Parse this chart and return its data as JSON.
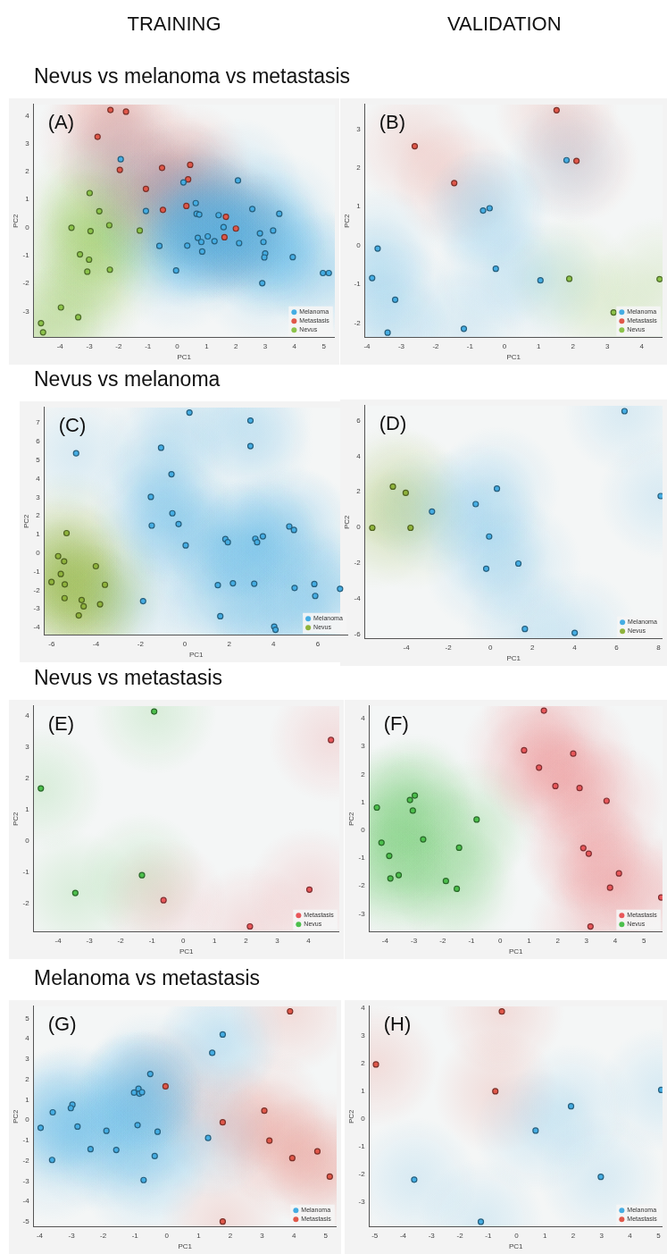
{
  "chart_data": [
    {
      "type": "scatter",
      "title": "(A)",
      "subtitle": "Nevus vs melanoma vs metastasis",
      "annotations": [
        "TRAINING"
      ],
      "xlabel": "PC1",
      "ylabel": "PC2",
      "xlim": [
        -4.9,
        5.37
      ],
      "ylim": [
        -3.94,
        4.4
      ],
      "xticks": [
        -4,
        -3,
        -2,
        -1,
        0,
        1,
        2,
        3,
        4,
        5
      ],
      "yticks": [
        -3,
        -2,
        -1,
        0,
        1,
        2,
        3,
        4
      ],
      "legend": "bottom right",
      "marker": "circle",
      "series": [
        {
          "name": "Melanoma",
          "color": "#45ade3",
          "x": [
            -1.93,
            0.21,
            2.07,
            -1.07,
            0.63,
            0.66,
            0.75,
            1.41,
            2.56,
            3.48,
            1.58,
            3.27,
            2.82,
            0.7,
            1.04,
            1.27,
            0.82,
            2.11,
            2.94,
            -0.61,
            0.34,
            0.85,
            3.0,
            2.97,
            3.94,
            -0.04,
            4.97,
            5.17,
            2.9
          ],
          "values": [
            2.44,
            1.61,
            1.68,
            0.59,
            0.87,
            0.49,
            0.46,
            0.44,
            0.66,
            0.49,
            0.01,
            -0.11,
            -0.21,
            -0.37,
            -0.32,
            -0.49,
            -0.52,
            -0.56,
            -0.52,
            -0.66,
            -0.65,
            -0.86,
            -0.93,
            -1.07,
            -1.06,
            -1.54,
            -1.63,
            -1.63,
            -1.99
          ]
        },
        {
          "name": "Metastasis",
          "color": "#e0584a",
          "x": [
            -2.28,
            -1.75,
            -2.72,
            -1.96,
            -0.52,
            0.44,
            0.37,
            -1.07,
            -0.49,
            0.31,
            1.66,
            2.0,
            1.61
          ],
          "values": [
            4.2,
            4.14,
            3.24,
            2.06,
            2.13,
            2.24,
            1.72,
            1.38,
            0.63,
            0.77,
            0.38,
            -0.04,
            -0.35
          ]
        },
        {
          "name": "Nevus",
          "color": "#8cc34a",
          "x": [
            -2.99,
            -2.66,
            -3.61,
            -2.96,
            -2.32,
            -1.28,
            -3.32,
            -3.01,
            -3.07,
            -2.3,
            -3.97,
            -3.38,
            -4.65,
            -4.58
          ],
          "values": [
            1.23,
            0.58,
            -0.01,
            -0.13,
            0.08,
            -0.11,
            -0.96,
            -1.15,
            -1.58,
            -1.51,
            -2.86,
            -3.21,
            -3.42,
            -3.75
          ]
        }
      ]
    },
    {
      "type": "scatter",
      "title": "(B)",
      "annotations": [
        "VALIDATION"
      ],
      "xlabel": "PC1",
      "ylabel": "PC2",
      "xlim": [
        -4.06,
        4.6
      ],
      "ylim": [
        -2.38,
        3.64
      ],
      "xticks": [
        -4,
        -3,
        -2,
        -1,
        0,
        1,
        2,
        3,
        4
      ],
      "yticks": [
        -2,
        -1,
        0,
        1,
        2,
        3
      ],
      "legend": "bottom right",
      "marker": "circle",
      "series": [
        {
          "name": "Melanoma",
          "color": "#45ade3",
          "x": [
            1.81,
            -0.62,
            -0.43,
            -3.69,
            -3.85,
            -0.25,
            1.05,
            -3.18,
            -3.4,
            -1.18
          ],
          "values": [
            2.2,
            0.9,
            0.96,
            -0.08,
            -0.84,
            -0.6,
            -0.9,
            -1.4,
            -2.25,
            -2.15
          ]
        },
        {
          "name": "Metastasis",
          "color": "#e0584a",
          "x": [
            1.52,
            -2.61,
            2.1,
            -1.46
          ],
          "values": [
            3.49,
            2.56,
            2.18,
            1.61
          ]
        },
        {
          "name": "Nevus",
          "color": "#8cc34a",
          "x": [
            1.89,
            4.52,
            3.18
          ],
          "values": [
            -0.86,
            -0.87,
            -1.73
          ]
        }
      ]
    },
    {
      "type": "scatter",
      "title": "(C)",
      "subtitle": "Nevus vs melanoma",
      "xlabel": "PC1",
      "ylabel": "PC2",
      "xlim": [
        -6.33,
        7.36
      ],
      "ylim": [
        -4.43,
        7.84
      ],
      "xticks": [
        -6,
        -4,
        -2,
        0,
        2,
        4,
        6
      ],
      "yticks": [
        -4,
        -3,
        -2,
        -1,
        0,
        1,
        2,
        3,
        4,
        5,
        6,
        7
      ],
      "legend": "bottom right",
      "marker": "circle",
      "series": [
        {
          "name": "Melanoma",
          "color": "#45ade3",
          "x": [
            0.21,
            2.96,
            2.96,
            -4.9,
            -1.07,
            -0.6,
            -1.53,
            -0.56,
            -1.49,
            -0.28,
            0.04,
            1.83,
            1.94,
            3.18,
            3.26,
            3.52,
            4.71,
            4.92,
            1.49,
            2.17,
            3.13,
            4.95,
            5.84,
            5.88,
            7.0,
            -1.88,
            1.6,
            4.03,
            4.09
          ],
          "values": [
            7.56,
            7.13,
            5.76,
            5.37,
            5.67,
            4.24,
            3.02,
            2.14,
            1.48,
            1.56,
            0.41,
            0.75,
            0.58,
            0.77,
            0.58,
            0.9,
            1.43,
            1.24,
            -1.73,
            -1.63,
            -1.65,
            -1.88,
            -1.67,
            -2.31,
            -1.93,
            -2.59,
            -3.4,
            -3.96,
            -4.13
          ]
        },
        {
          "name": "Nevus",
          "color": "#8fb33c",
          "x": [
            -5.33,
            -5.71,
            -5.44,
            -5.59,
            -6.01,
            -5.41,
            -4.01,
            -3.6,
            -5.42,
            -4.65,
            -4.56,
            -3.82,
            -4.78
          ],
          "values": [
            1.07,
            -0.17,
            -0.45,
            -1.13,
            -1.56,
            -1.69,
            -0.71,
            -1.71,
            -2.43,
            -2.53,
            -2.87,
            -2.76,
            -3.36
          ]
        }
      ]
    },
    {
      "type": "scatter",
      "title": "(D)",
      "xlabel": "PC1",
      "ylabel": "PC2",
      "xlim": [
        -5.97,
        8.18
      ],
      "ylim": [
        -6.26,
        6.84
      ],
      "xticks": [
        -4,
        -2,
        0,
        2,
        4,
        6,
        8
      ],
      "yticks": [
        -6,
        -4,
        -2,
        0,
        2,
        4,
        6
      ],
      "legend": "bottom right",
      "marker": "circle",
      "series": [
        {
          "name": "Melanoma",
          "color": "#45ade3",
          "x": [
            6.38,
            8.1,
            -2.78,
            -0.7,
            0.31,
            -0.06,
            -0.2,
            1.33,
            1.64,
            4.01
          ],
          "values": [
            6.53,
            1.76,
            0.89,
            1.31,
            2.18,
            -0.51,
            -2.32,
            -2.03,
            -5.7,
            -5.92
          ]
        },
        {
          "name": "Nevus",
          "color": "#8fb33c",
          "x": [
            -5.62,
            -4.64,
            -4.03,
            -3.8
          ],
          "values": [
            -0.02,
            2.29,
            1.94,
            -0.02
          ]
        }
      ]
    },
    {
      "type": "scatter",
      "title": "(E)",
      "subtitle": "Nevus vs metastasis",
      "xlabel": "PC1",
      "ylabel": "PC2",
      "xlim": [
        -4.78,
        4.98
      ],
      "ylim": [
        -2.93,
        4.31
      ],
      "xticks": [
        -4,
        -3,
        -2,
        -1,
        0,
        1,
        2,
        3,
        4
      ],
      "yticks": [
        -2,
        -1,
        0,
        1,
        2,
        3,
        4
      ],
      "legend": "bottom right",
      "marker": "circle",
      "series": [
        {
          "name": "Metastasis",
          "color": "#e8575a",
          "x": [
            4.72,
            -0.63,
            4.03,
            2.13
          ],
          "values": [
            3.22,
            -1.91,
            -1.57,
            -2.75
          ]
        },
        {
          "name": "Nevus",
          "color": "#4cbf4c",
          "x": [
            -0.93,
            -4.55,
            -1.32,
            -3.45
          ],
          "values": [
            4.13,
            1.67,
            -1.11,
            -1.68
          ]
        }
      ]
    },
    {
      "type": "scatter",
      "title": "(F)",
      "xlabel": "PC1",
      "ylabel": "PC2",
      "xlim": [
        -4.55,
        5.64
      ],
      "ylim": [
        -3.65,
        4.45
      ],
      "xticks": [
        -4,
        -3,
        -2,
        -1,
        0,
        1,
        2,
        3,
        4,
        5
      ],
      "yticks": [
        -3,
        -2,
        -1,
        0,
        1,
        2,
        3,
        4
      ],
      "legend": "bottom right",
      "marker": "circle",
      "series": [
        {
          "name": "Metastasis",
          "color": "#e8575a",
          "x": [
            1.52,
            0.83,
            1.35,
            2.54,
            1.92,
            2.76,
            3.7,
            2.89,
            3.08,
            4.13,
            3.82,
            5.6,
            3.14
          ],
          "values": [
            4.28,
            2.86,
            2.24,
            2.74,
            1.58,
            1.51,
            1.05,
            -0.64,
            -0.84,
            -1.55,
            -2.06,
            -2.41,
            -3.45
          ]
        },
        {
          "name": "Nevus",
          "color": "#4cbf4c",
          "x": [
            -4.29,
            -3.14,
            -2.97,
            -3.04,
            -0.82,
            -4.13,
            -2.68,
            -3.86,
            -1.43,
            -3.82,
            -3.53,
            -1.89,
            -1.51
          ],
          "values": [
            0.81,
            1.08,
            1.24,
            0.7,
            0.38,
            -0.45,
            -0.33,
            -0.92,
            -0.63,
            -1.73,
            -1.61,
            -1.82,
            -2.1
          ]
        }
      ]
    },
    {
      "type": "scatter",
      "title": "(G)",
      "subtitle": "Melanoma vs metastasis",
      "xlabel": "PC1",
      "ylabel": "PC2",
      "xlim": [
        -4.19,
        5.34
      ],
      "ylim": [
        -5.26,
        5.6
      ],
      "xticks": [
        -4,
        -3,
        -2,
        -1,
        0,
        1,
        2,
        3,
        4,
        5
      ],
      "yticks": [
        -5,
        -4,
        -3,
        -2,
        -1,
        0,
        1,
        2,
        3,
        4,
        5
      ],
      "legend": "bottom right",
      "marker": "circle",
      "series": [
        {
          "name": "Melanoma",
          "color": "#45ade3",
          "x": [
            1.76,
            1.43,
            -0.52,
            -1.03,
            -0.89,
            -0.86,
            -0.78,
            -2.97,
            -3.02,
            -3.59,
            -3.97,
            -2.81,
            -1.9,
            -0.92,
            -0.29,
            -2.4,
            -1.59,
            -0.38,
            -3.61,
            -0.73,
            1.3
          ],
          "values": [
            4.21,
            3.31,
            2.27,
            1.35,
            1.54,
            1.3,
            1.37,
            0.76,
            0.59,
            0.38,
            -0.38,
            -0.32,
            -0.53,
            -0.25,
            -0.57,
            -1.43,
            -1.47,
            -1.77,
            -1.96,
            -2.95,
            -0.88
          ]
        },
        {
          "name": "Metastasis",
          "color": "#e0584a",
          "x": [
            3.88,
            -0.04,
            1.76,
            3.07,
            3.23,
            3.95,
            4.74,
            5.13,
            1.76
          ],
          "values": [
            5.35,
            1.66,
            -0.11,
            0.46,
            -1.01,
            -1.87,
            -1.54,
            -2.78,
            -4.99
          ]
        }
      ]
    },
    {
      "type": "scatter",
      "title": "(H)",
      "xlabel": "PC1",
      "ylabel": "PC2",
      "xlim": [
        -5.19,
        5.14
      ],
      "ylim": [
        -3.9,
        4.07
      ],
      "xticks": [
        -5,
        -4,
        -3,
        -2,
        -1,
        0,
        1,
        2,
        3,
        4,
        5
      ],
      "yticks": [
        -3,
        -2,
        -1,
        0,
        1,
        2,
        3,
        4
      ],
      "legend": "bottom right",
      "marker": "circle",
      "series": [
        {
          "name": "Melanoma",
          "color": "#45ade3",
          "x": [
            5.1,
            1.92,
            0.67,
            -3.61,
            2.97,
            -1.26
          ],
          "values": [
            1.05,
            0.46,
            -0.42,
            -2.19,
            -2.09,
            -3.71
          ]
        },
        {
          "name": "Metastasis",
          "color": "#e0584a",
          "x": [
            -0.52,
            -4.96,
            -0.75
          ],
          "values": [
            3.88,
            1.97,
            1.0
          ]
        }
      ]
    }
  ]
}
